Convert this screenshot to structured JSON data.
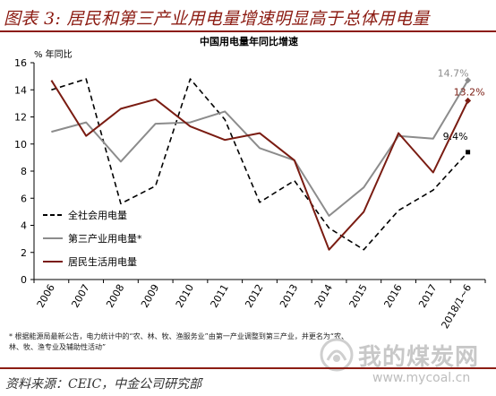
{
  "header": {
    "title": "图表 3: 居民和第三产业用电量增速明显高于总体用电量"
  },
  "footnote": {
    "line1": "* 根据能源局最新公告，电力统计中的“农、林、牧、渔服务业”由第一产业调整到第三产业，并更名为“农、",
    "line2": "林、牧、渔专业及辅助性活动”"
  },
  "source": {
    "text": "资料来源：CEIC，中金公司研究部"
  },
  "watermark": {
    "text": "我的煤炭网",
    "url": "www.mycoal.cn"
  },
  "colors": {
    "accent": "#8c1c13",
    "series_total": "#000000",
    "series_tertiary": "#8c8c8c",
    "series_residential": "#7a1c12"
  },
  "chart_data": {
    "type": "line",
    "title": "中国用电量年同比增速",
    "ylabel": "% 年同比",
    "ylim": [
      0,
      16
    ],
    "yticks": [
      "0",
      "2",
      "4",
      "6",
      "8",
      "10",
      "12",
      "14",
      "16"
    ],
    "categories": [
      "2006",
      "2007",
      "2008",
      "2009",
      "2010",
      "2011",
      "2012",
      "2013",
      "2014",
      "2015",
      "2016",
      "2017",
      "2018/1~6"
    ],
    "legend_position": "bottom-left",
    "series": [
      {
        "name": "全社会用电量",
        "style": "dashed",
        "color": "#000000",
        "values": [
          14.0,
          14.8,
          5.6,
          6.9,
          14.8,
          11.8,
          5.7,
          7.3,
          3.8,
          2.2,
          5.1,
          6.6,
          9.4
        ],
        "end_label": "9.4%"
      },
      {
        "name": "第三产业用电量*",
        "style": "solid",
        "color": "#8c8c8c",
        "values": [
          10.9,
          11.6,
          8.7,
          11.5,
          11.6,
          12.4,
          9.7,
          8.8,
          4.7,
          6.8,
          10.6,
          10.4,
          14.7
        ],
        "end_label": "14.7%"
      },
      {
        "name": "居民生活用电量",
        "style": "solid",
        "color": "#7a1c12",
        "values": [
          14.7,
          10.6,
          12.6,
          13.3,
          11.3,
          10.3,
          10.8,
          8.8,
          2.2,
          5.0,
          10.8,
          7.9,
          13.2
        ],
        "end_label": "13.2%"
      }
    ]
  }
}
